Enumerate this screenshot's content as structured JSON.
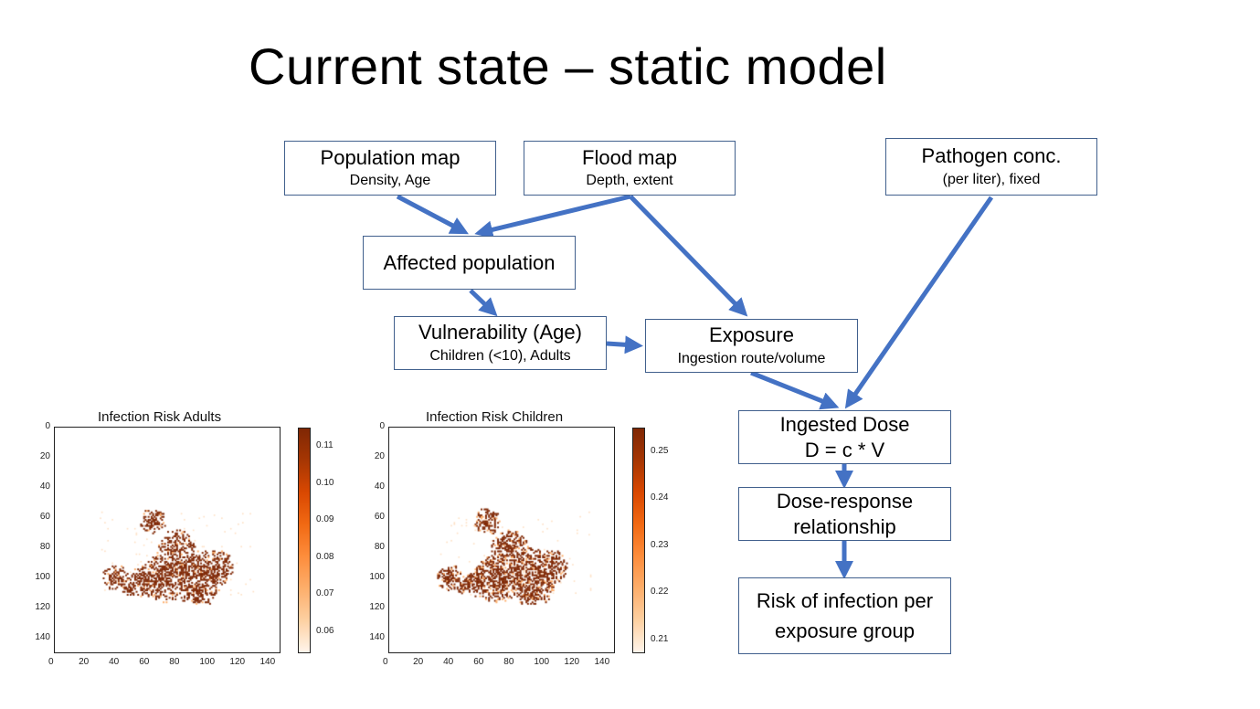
{
  "slide": {
    "title": "Current state – static model"
  },
  "boxes": {
    "population_map": {
      "main": "Population map",
      "sub": "Density, Age"
    },
    "flood_map": {
      "main": "Flood map",
      "sub": "Depth, extent"
    },
    "pathogen": {
      "main": "Pathogen conc.",
      "sub": "(per liter), fixed"
    },
    "affected": {
      "main": "Affected population"
    },
    "vulnerability": {
      "main": "Vulnerability (Age)",
      "sub": "Children (<10), Adults"
    },
    "exposure": {
      "main": "Exposure",
      "sub": "Ingestion route/volume"
    },
    "ingested": {
      "main": "Ingested Dose",
      "line2": "D = c * V"
    },
    "dose_response": {
      "main": "Dose-response",
      "line2": "relationship"
    },
    "risk": {
      "main": "Risk of infection per",
      "line2": "exposure group"
    }
  },
  "colors": {
    "arrow": "#4472c4",
    "box_border": "#41608d",
    "cmap_low": "#fff5eb",
    "cmap_high": "#7f2704"
  },
  "chart_data": [
    {
      "type": "heatmap",
      "title": "Infection Risk Adults",
      "x_ticks": [
        "0",
        "20",
        "40",
        "60",
        "80",
        "100",
        "120",
        "140"
      ],
      "y_ticks": [
        "0",
        "20",
        "40",
        "60",
        "80",
        "100",
        "120",
        "140"
      ],
      "colorbar_ticks": [
        "0.11",
        "0.10",
        "0.09",
        "0.08",
        "0.07",
        "0.06"
      ],
      "colorbar_range": [
        0.054,
        0.115
      ],
      "grid": false
    },
    {
      "type": "heatmap",
      "title": "Infection Risk Children",
      "x_ticks": [
        "0",
        "20",
        "40",
        "60",
        "80",
        "100",
        "120",
        "140"
      ],
      "y_ticks": [
        "0",
        "20",
        "40",
        "60",
        "80",
        "100",
        "120",
        "140"
      ],
      "colorbar_ticks": [
        "0.25",
        "0.24",
        "0.23",
        "0.22",
        "0.21"
      ],
      "colorbar_range": [
        0.207,
        0.255
      ],
      "grid": false
    }
  ]
}
